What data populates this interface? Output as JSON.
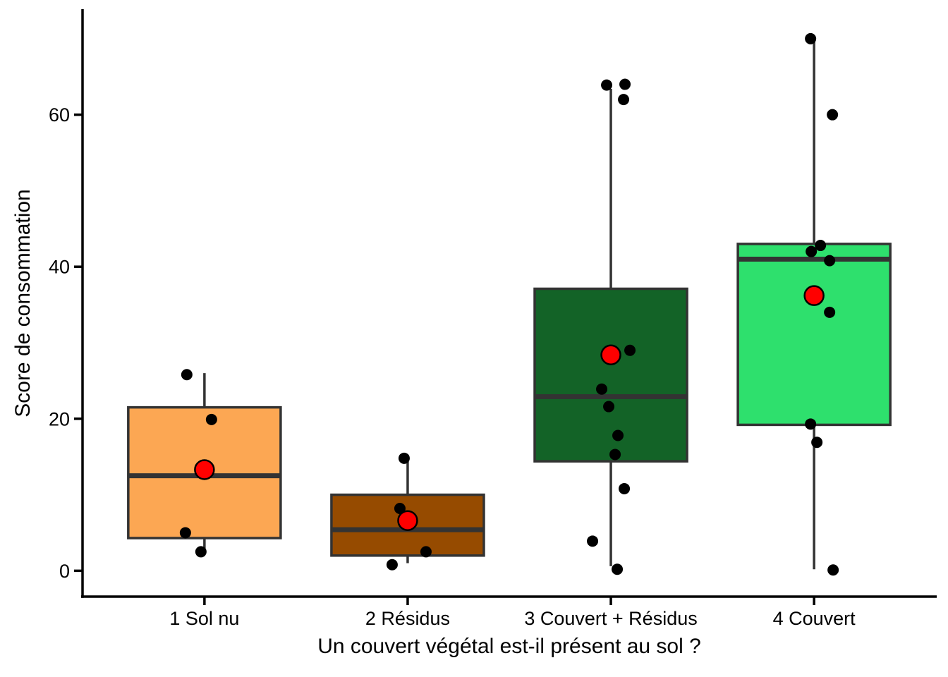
{
  "figure": {
    "background": "#FFFFFF"
  },
  "chart_data": {
    "type": "boxplot",
    "title": "",
    "xlabel": "Un couvert végétal est-il présent au sol ?",
    "ylabel": "Score de consommation",
    "ylim": [
      -3.4,
      73.7
    ],
    "yticks": [
      0,
      20,
      40,
      60
    ],
    "grid": false,
    "legend": false,
    "colors": {
      "jitter_point": "#000000",
      "mean_point_fill": "#FF0000",
      "mean_point_stroke": "#000000",
      "box_stroke": "#333333",
      "axis": "#000000",
      "tick_label": "#000000"
    },
    "groups": [
      {
        "label": "1 Sol nu",
        "fill": "#FCA753",
        "box": {
          "whisker_low": 2.5,
          "q1": 4.3,
          "median": 12.5,
          "q3": 21.5,
          "whisker_high": 26.0
        },
        "mean": 13.3,
        "points": [
          {
            "dx": -25,
            "y": 25.8
          },
          {
            "dx": 10,
            "y": 19.9
          },
          {
            "dx": -27,
            "y": 5.0
          },
          {
            "dx": -5,
            "y": 2.5
          }
        ]
      },
      {
        "label": "2 Résidus",
        "fill": "#964B00",
        "box": {
          "whisker_low": 1.0,
          "q1": 2.0,
          "median": 5.4,
          "q3": 10.0,
          "whisker_high": 14.8
        },
        "mean": 6.6,
        "points": [
          {
            "dx": -5,
            "y": 14.8
          },
          {
            "dx": -11,
            "y": 8.2
          },
          {
            "dx": 26,
            "y": 2.5
          },
          {
            "dx": -22,
            "y": 0.8
          }
        ]
      },
      {
        "label": "3 Couvert + Résidus",
        "fill": "#136327",
        "box": {
          "whisker_low": 0.6,
          "q1": 14.4,
          "median": 22.9,
          "q3": 37.1,
          "whisker_high": 63.4
        },
        "mean": 28.4,
        "points": [
          {
            "dx": -6,
            "y": 63.9
          },
          {
            "dx": 20,
            "y": 64.0
          },
          {
            "dx": 18,
            "y": 62.0
          },
          {
            "dx": 27,
            "y": 29.0
          },
          {
            "dx": -13,
            "y": 23.9
          },
          {
            "dx": -3,
            "y": 21.6
          },
          {
            "dx": 10,
            "y": 17.8
          },
          {
            "dx": 6,
            "y": 15.3
          },
          {
            "dx": 19,
            "y": 10.8
          },
          {
            "dx": -26,
            "y": 3.9
          },
          {
            "dx": 9,
            "y": 0.2
          }
        ]
      },
      {
        "label": "4 Couvert",
        "fill": "#2EE06D",
        "box": {
          "whisker_low": 0.2,
          "q1": 19.2,
          "median": 41.0,
          "q3": 43.0,
          "whisker_high": 69.6
        },
        "mean": 36.2,
        "points": [
          {
            "dx": -5,
            "y": 70.0
          },
          {
            "dx": 26,
            "y": 60.0
          },
          {
            "dx": 9,
            "y": 42.8
          },
          {
            "dx": -4,
            "y": 42.0
          },
          {
            "dx": 22,
            "y": 40.8
          },
          {
            "dx": 22,
            "y": 34.0
          },
          {
            "dx": -5,
            "y": 19.3
          },
          {
            "dx": 4,
            "y": 16.9
          },
          {
            "dx": 27,
            "y": 0.1
          }
        ]
      }
    ]
  }
}
